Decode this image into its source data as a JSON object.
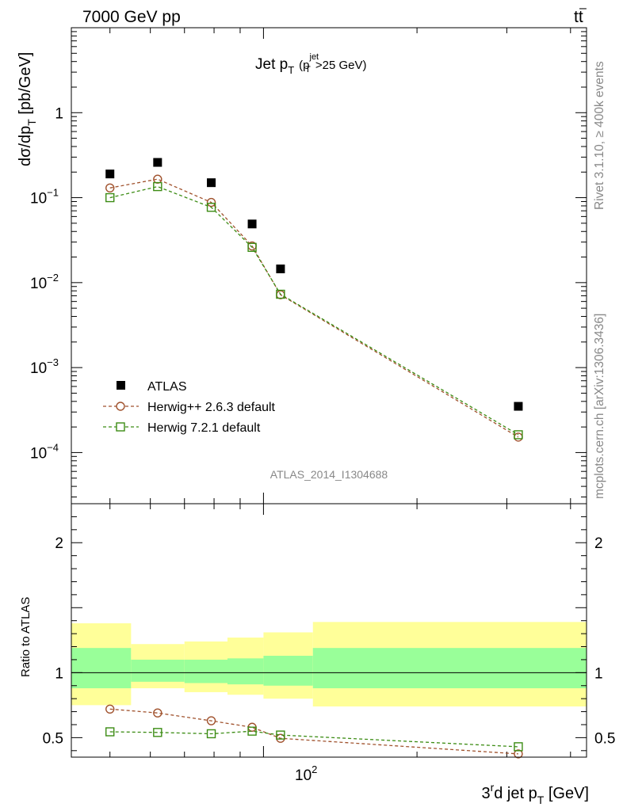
{
  "header": {
    "energy_label": "7000 GeV pp",
    "process_main": "tt",
    "process_bar": "–"
  },
  "side_text": {
    "rivet": "Rivet 3.1.10, ≥ 400k events",
    "mcplots": "mcplots.cern.ch [arXiv:1306.3436]"
  },
  "watermark": "ATLAS_2014_I1304688",
  "colors": {
    "herwigpp": "#a0522d",
    "herwig7": "#3c8c14",
    "band_outer": "#ffff99",
    "band_inner": "#99ff99",
    "data": "#000000"
  },
  "chart_data": [
    {
      "type": "scatter",
      "panel": "main",
      "title": "Jet p_T (p_T^jet>25 GeV)",
      "title_parts": {
        "main": "Jet p",
        "sub": "T",
        "paren_open": "(p",
        "sup": "jet",
        "sub2": "T",
        "rest": ">25 GeV)"
      },
      "ylabel": "dσ/dp_T [pb/GeV]",
      "ylabel_parts": {
        "main": "dσ/dp",
        "sub": "T",
        "rest": " [pb/GeV]"
      },
      "yscale": "log",
      "xscale": "log",
      "xlim": [
        42,
        430
      ],
      "ylim": [
        2.5e-05,
        10
      ],
      "y_ticks": [
        {
          "value": 1,
          "base": "1",
          "exp": ""
        },
        {
          "value": 0.1,
          "base": "10",
          "exp": "−1"
        },
        {
          "value": 0.01,
          "base": "10",
          "exp": "−2"
        },
        {
          "value": 0.001,
          "base": "10",
          "exp": "−3"
        },
        {
          "value": 0.0001,
          "base": "10",
          "exp": "−4"
        }
      ],
      "legend_position": "lower-left",
      "series": [
        {
          "name": "ATLAS",
          "marker": "filled-square",
          "x": [
            50,
            62,
            79,
            95,
            108,
            316
          ],
          "y": [
            0.19,
            0.26,
            0.15,
            0.049,
            0.0145,
            0.00035
          ]
        },
        {
          "name": "Herwig++ 2.6.3 default",
          "marker": "open-circle",
          "line": "dashed",
          "x": [
            50,
            62,
            79,
            95,
            108,
            316
          ],
          "y": [
            0.13,
            0.165,
            0.088,
            0.027,
            0.0072,
            0.000152
          ]
        },
        {
          "name": "Herwig 7.2.1 default",
          "marker": "open-square",
          "line": "dashed",
          "x": [
            50,
            62,
            79,
            95,
            108,
            316
          ],
          "y": [
            0.1,
            0.135,
            0.077,
            0.026,
            0.0073,
            0.000162
          ]
        }
      ]
    },
    {
      "type": "line",
      "panel": "ratio",
      "ylabel": "Ratio to ATLAS",
      "xlabel": "3^rd jet p_T [GeV]",
      "xlabel_parts": {
        "a": "3",
        "sup": "r",
        "b": "d jet p",
        "sub": "T",
        "rest": " [GeV]"
      },
      "xscale": "log",
      "xlim": [
        42,
        430
      ],
      "ylim": [
        0.35,
        2.3
      ],
      "y_ticks": [
        0.5,
        1,
        2
      ],
      "x_ticks": [
        {
          "value": 100,
          "base": "10",
          "exp": "2"
        }
      ],
      "reference": 1,
      "band_bins": [
        {
          "x_low": 42,
          "x_high": 55,
          "outer": [
            0.75,
            1.38
          ],
          "inner": [
            0.88,
            1.19
          ]
        },
        {
          "x_low": 55,
          "x_high": 70,
          "outer": [
            0.88,
            1.22
          ],
          "inner": [
            0.93,
            1.1
          ]
        },
        {
          "x_low": 70,
          "x_high": 85,
          "outer": [
            0.85,
            1.24
          ],
          "inner": [
            0.92,
            1.1
          ]
        },
        {
          "x_low": 85,
          "x_high": 100,
          "outer": [
            0.83,
            1.27
          ],
          "inner": [
            0.91,
            1.11
          ]
        },
        {
          "x_low": 100,
          "x_high": 125,
          "outer": [
            0.8,
            1.31
          ],
          "inner": [
            0.9,
            1.13
          ]
        },
        {
          "x_low": 125,
          "x_high": 430,
          "outer": [
            0.74,
            1.39
          ],
          "inner": [
            0.88,
            1.19
          ]
        }
      ],
      "series": [
        {
          "name": "Herwig++ 2.6.3 default",
          "marker": "open-circle",
          "x": [
            50,
            62,
            79,
            95,
            108,
            316
          ],
          "y": [
            0.72,
            0.69,
            0.63,
            0.58,
            0.495,
            0.375
          ]
        },
        {
          "name": "Herwig 7.2.1 default",
          "marker": "open-square",
          "x": [
            50,
            62,
            79,
            95,
            108,
            316
          ],
          "y": [
            0.545,
            0.54,
            0.53,
            0.55,
            0.52,
            0.43
          ]
        }
      ]
    }
  ]
}
